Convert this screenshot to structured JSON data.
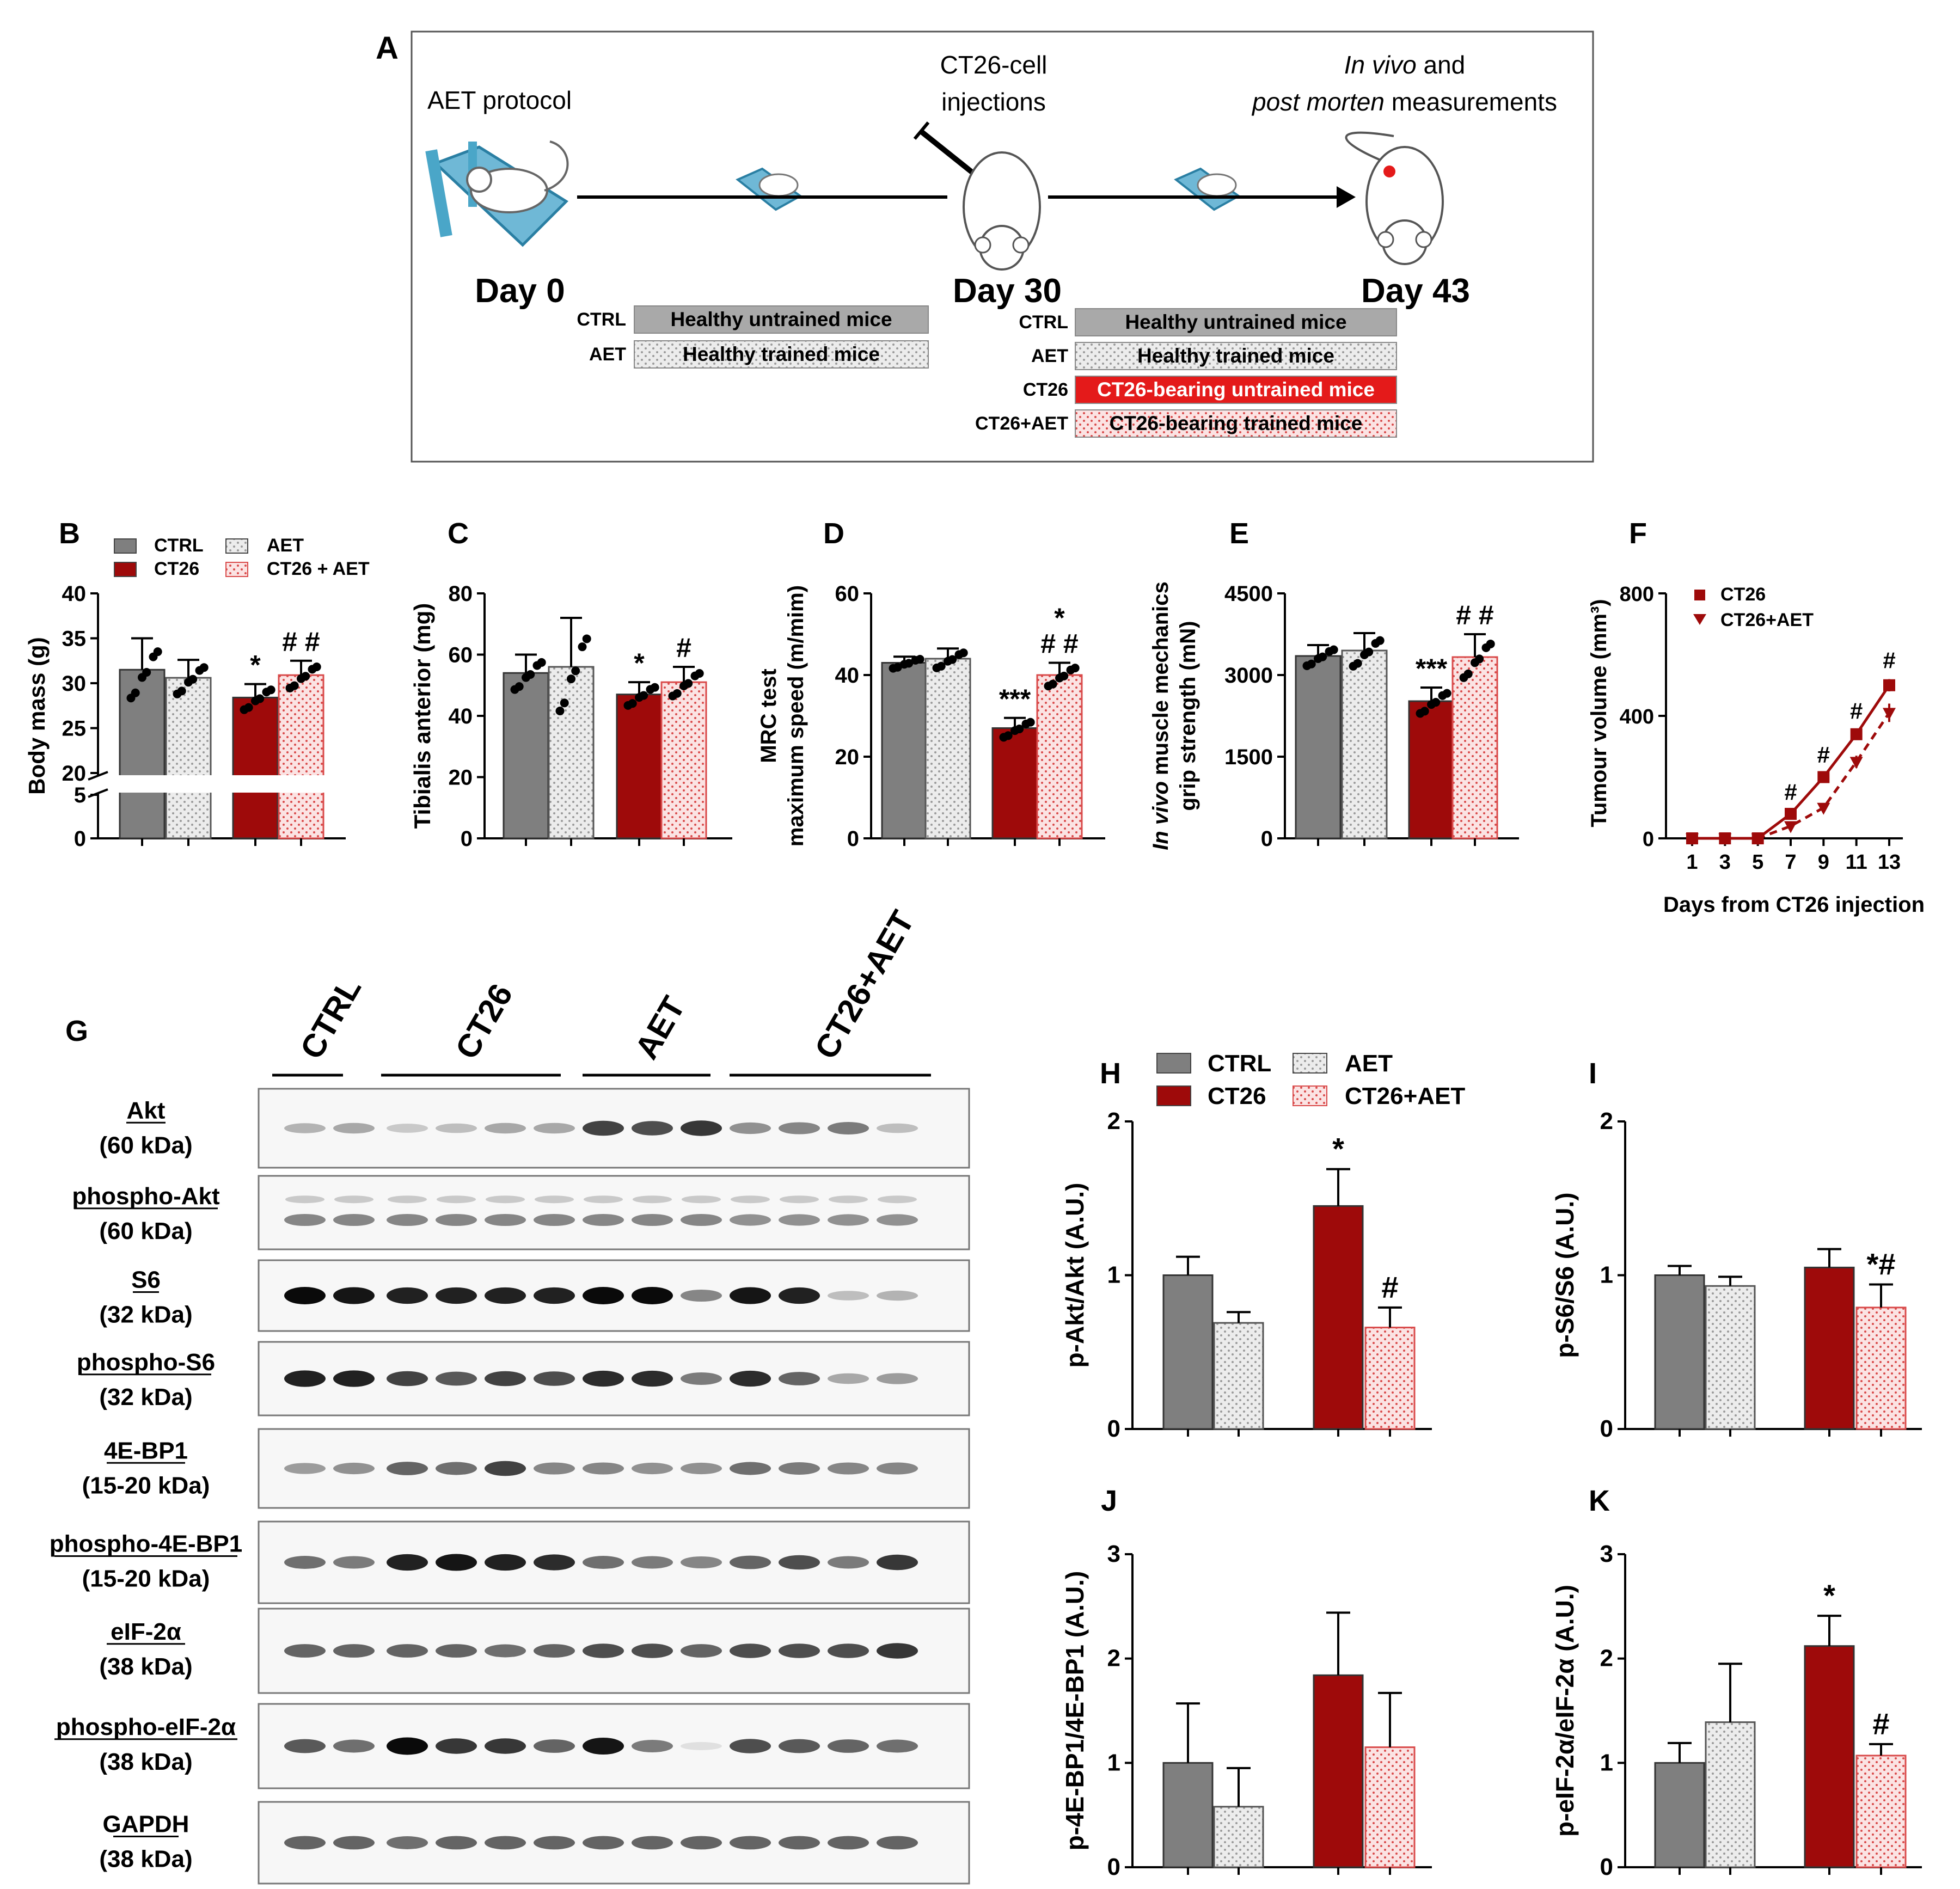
{
  "colors": {
    "ctrl": "#7f7f7f",
    "aet": "#e4e4e4",
    "ct26": "#9e0a0a",
    "ct26aet": "#f6c4c4",
    "red_bar": "#e41a1a",
    "box_border": "#555555",
    "timeline_blue": "#4aa6c8"
  },
  "panelA": {
    "letter": "A",
    "aet_protocol": "AET protocol",
    "injections_line1": "CT26-cell",
    "injections_line2": "injections",
    "measure_line1_italic": "In vivo",
    "measure_line1_rest": " and",
    "measure_line2_italic": "post morten",
    "measure_line2_rest": " measurements",
    "day0": "Day 0",
    "day30": "Day 30",
    "day43": "Day 43",
    "left_groups": [
      {
        "code": "CTRL",
        "desc": "Healthy untrained mice",
        "style": "gray"
      },
      {
        "code": "AET",
        "desc": "Healthy trained mice",
        "style": "dot"
      }
    ],
    "right_groups": [
      {
        "code": "CTRL",
        "desc": "Healthy untrained mice",
        "style": "gray"
      },
      {
        "code": "AET",
        "desc": "Healthy trained mice",
        "style": "dot"
      },
      {
        "code": "CT26",
        "desc": "CT26-bearing untrained mice",
        "style": "red"
      },
      {
        "code": "CT26+AET",
        "desc": "CT26-bearing trained mice",
        "style": "pink"
      }
    ]
  },
  "legendB": {
    "ctrl": "CTRL",
    "aet": "AET",
    "ct26": "CT26",
    "ct26aet": "CT26 + AET"
  },
  "legendF": {
    "ct26": "CT26",
    "ct26aet": "CT26+AET"
  },
  "legendH": {
    "ctrl": "CTRL",
    "aet": "AET",
    "ct26": "CT26",
    "ct26aet": "CT26+AET"
  },
  "chart_data": [
    {
      "panel": "B",
      "type": "bar",
      "ylabel": "Body mass (g)",
      "yticks_lower": [
        "0",
        "5"
      ],
      "yticks_upper": [
        "20",
        "25",
        "30",
        "35",
        "40"
      ],
      "ylim_lower": [
        0,
        5
      ],
      "ylim_upper": [
        20,
        40
      ],
      "axis_break": true,
      "series": [
        {
          "name": "CTRL",
          "value": 31.5,
          "err": 3.5
        },
        {
          "name": "AET",
          "value": 30.6,
          "err": 2.0
        },
        {
          "name": "CT26",
          "value": 28.4,
          "err": 1.5,
          "marks": "*"
        },
        {
          "name": "CT26 + AET",
          "value": 30.9,
          "err": 1.6,
          "marks": "# #"
        }
      ]
    },
    {
      "panel": "C",
      "type": "bar",
      "ylabel": "Tibialis anterior (mg)",
      "yticks": [
        "0",
        "20",
        "40",
        "60",
        "80"
      ],
      "ylim": [
        0,
        80
      ],
      "series": [
        {
          "name": "CTRL",
          "value": 54,
          "err": 6
        },
        {
          "name": "AET",
          "value": 56,
          "err": 16
        },
        {
          "name": "CT26",
          "value": 47,
          "err": 4,
          "marks": "*"
        },
        {
          "name": "CT26 + AET",
          "value": 51,
          "err": 5,
          "marks": "#"
        }
      ]
    },
    {
      "panel": "D",
      "type": "bar",
      "ylabel_lines": [
        "MRC test",
        "maximum speed (m/mim)"
      ],
      "yticks": [
        "0",
        "20",
        "40",
        "60"
      ],
      "ylim": [
        0,
        60
      ],
      "series": [
        {
          "name": "CTRL",
          "value": 43,
          "err": 1.5
        },
        {
          "name": "AET",
          "value": 44,
          "err": 2.5
        },
        {
          "name": "CT26",
          "value": 27,
          "err": 2.5,
          "marks": "***"
        },
        {
          "name": "CT26 + AET",
          "value": 40,
          "err": 3,
          "marks": "*\n# #"
        }
      ]
    },
    {
      "panel": "E",
      "type": "bar",
      "ylabel_lines": [
        "In vivo muscle mechanics",
        "grip strength (mN)"
      ],
      "ylabel_italic_prefix": "In vivo",
      "yticks": [
        "0",
        "1500",
        "3000",
        "4500"
      ],
      "ylim": [
        0,
        4500
      ],
      "series": [
        {
          "name": "CTRL",
          "value": 3350,
          "err": 200
        },
        {
          "name": "AET",
          "value": 3450,
          "err": 320
        },
        {
          "name": "CT26",
          "value": 2520,
          "err": 250,
          "marks": "***"
        },
        {
          "name": "CT26 + AET",
          "value": 3330,
          "err": 420,
          "marks": "# #"
        }
      ]
    },
    {
      "panel": "F",
      "type": "line",
      "ylabel": "Tumour volume (mm³)",
      "xlabel": "Days from CT26 injection",
      "yticks": [
        "0",
        "400",
        "800"
      ],
      "ylim": [
        0,
        800
      ],
      "x": [
        1,
        3,
        5,
        7,
        9,
        11,
        13
      ],
      "xticks": [
        "1",
        "3",
        "5",
        "7",
        "9",
        "11",
        "13"
      ],
      "series": [
        {
          "name": "CT26",
          "values": [
            0,
            0,
            0,
            80,
            200,
            340,
            500
          ],
          "err": [
            0,
            0,
            0,
            10,
            12,
            15,
            20
          ]
        },
        {
          "name": "CT26+AET",
          "values": [
            0,
            0,
            0,
            40,
            100,
            250,
            410
          ],
          "err": [
            0,
            0,
            0,
            6,
            10,
            20,
            30
          ]
        }
      ],
      "marks_at": [
        7,
        9,
        11,
        13
      ],
      "mark": "#"
    },
    {
      "panel": "H",
      "type": "bar",
      "ylabel": "p-Akt/Akt (A.U.)",
      "yticks": [
        "0",
        "1",
        "2"
      ],
      "ylim": [
        0,
        2
      ],
      "series": [
        {
          "name": "CTRL",
          "value": 1.0,
          "err": 0.12
        },
        {
          "name": "AET",
          "value": 0.69,
          "err": 0.07
        },
        {
          "name": "CT26",
          "value": 1.45,
          "err": 0.24,
          "marks": "*"
        },
        {
          "name": "CT26+AET",
          "value": 0.66,
          "err": 0.13,
          "marks": "#"
        }
      ]
    },
    {
      "panel": "I",
      "type": "bar",
      "ylabel": "p-S6/S6 (A.U.)",
      "yticks": [
        "0",
        "1",
        "2"
      ],
      "ylim": [
        0,
        2
      ],
      "series": [
        {
          "name": "CTRL",
          "value": 1.0,
          "err": 0.06
        },
        {
          "name": "AET",
          "value": 0.93,
          "err": 0.06
        },
        {
          "name": "CT26",
          "value": 1.05,
          "err": 0.12
        },
        {
          "name": "CT26+AET",
          "value": 0.79,
          "err": 0.15,
          "marks": "*#"
        }
      ]
    },
    {
      "panel": "J",
      "type": "bar",
      "ylabel": "p-4E-BP1/4E-BP1 (A.U.)",
      "yticks": [
        "0",
        "1",
        "2",
        "3"
      ],
      "ylim": [
        0,
        3
      ],
      "series": [
        {
          "name": "CTRL",
          "value": 1.0,
          "err": 0.57
        },
        {
          "name": "AET",
          "value": 0.58,
          "err": 0.37
        },
        {
          "name": "CT26",
          "value": 1.84,
          "err": 0.6
        },
        {
          "name": "CT26+AET",
          "value": 1.15,
          "err": 0.52
        }
      ]
    },
    {
      "panel": "K",
      "type": "bar",
      "ylabel": "p-eIF-2α/eIF-2α (A.U.)",
      "yticks": [
        "0",
        "1",
        "2",
        "3"
      ],
      "ylim": [
        0,
        3
      ],
      "series": [
        {
          "name": "CTRL",
          "value": 1.0,
          "err": 0.19
        },
        {
          "name": "AET",
          "value": 1.39,
          "err": 0.56
        },
        {
          "name": "CT26",
          "value": 2.12,
          "err": 0.29,
          "marks": "*"
        },
        {
          "name": "CT26+AET",
          "value": 1.07,
          "err": 0.11,
          "marks": "#"
        }
      ]
    }
  ],
  "letters": {
    "B": "B",
    "C": "C",
    "D": "D",
    "E": "E",
    "F": "F",
    "G": "G",
    "H": "H",
    "I": "I",
    "J": "J",
    "K": "K"
  },
  "blot": {
    "groups": [
      "CTRL",
      "CT26",
      "AET",
      "CT26+AET"
    ],
    "group_lane_counts": [
      2,
      4,
      3,
      4
    ],
    "rows": [
      {
        "name": "Akt",
        "kda": "(60 kDa)",
        "intensities": [
          0.25,
          0.3,
          0.15,
          0.2,
          0.3,
          0.3,
          0.75,
          0.7,
          0.8,
          0.4,
          0.45,
          0.5,
          0.2
        ]
      },
      {
        "name": "phospho-Akt",
        "kda": "(60 kDa)",
        "intensities": [
          0.45,
          0.45,
          0.45,
          0.45,
          0.45,
          0.45,
          0.45,
          0.45,
          0.45,
          0.4,
          0.4,
          0.4,
          0.4
        ]
      },
      {
        "name": "S6",
        "kda": "(32 kDa)",
        "intensities": [
          1,
          0.95,
          0.9,
          0.9,
          0.9,
          0.9,
          1,
          1,
          0.45,
          0.95,
          0.9,
          0.2,
          0.25
        ]
      },
      {
        "name": "phospho-S6",
        "kda": "(32 kDa)",
        "intensities": [
          0.9,
          0.9,
          0.75,
          0.65,
          0.75,
          0.7,
          0.85,
          0.85,
          0.5,
          0.85,
          0.6,
          0.3,
          0.35
        ]
      },
      {
        "name": "4E-BP1",
        "kda": "(15-20 kDa)",
        "intensities": [
          0.35,
          0.4,
          0.6,
          0.55,
          0.75,
          0.45,
          0.45,
          0.4,
          0.4,
          0.55,
          0.5,
          0.45,
          0.45
        ]
      },
      {
        "name": "phospho-4E-BP1",
        "kda": "(15-20 kDa)",
        "intensities": [
          0.55,
          0.5,
          0.9,
          0.95,
          0.9,
          0.85,
          0.55,
          0.5,
          0.45,
          0.6,
          0.7,
          0.5,
          0.8
        ]
      },
      {
        "name": "eIF-2α",
        "kda": "(38 kDa)",
        "intensities": [
          0.6,
          0.6,
          0.6,
          0.6,
          0.55,
          0.6,
          0.7,
          0.7,
          0.6,
          0.7,
          0.7,
          0.7,
          0.8
        ]
      },
      {
        "name": "phospho-eIF-2α",
        "kda": "(38 kDa)",
        "intensities": [
          0.65,
          0.55,
          1,
          0.8,
          0.8,
          0.6,
          0.95,
          0.5,
          0.05,
          0.7,
          0.65,
          0.6,
          0.55
        ]
      },
      {
        "name": "GAPDH",
        "kda": "(38 kDa)",
        "intensities": [
          0.6,
          0.6,
          0.55,
          0.6,
          0.6,
          0.6,
          0.6,
          0.6,
          0.6,
          0.6,
          0.6,
          0.6,
          0.6
        ]
      }
    ]
  }
}
